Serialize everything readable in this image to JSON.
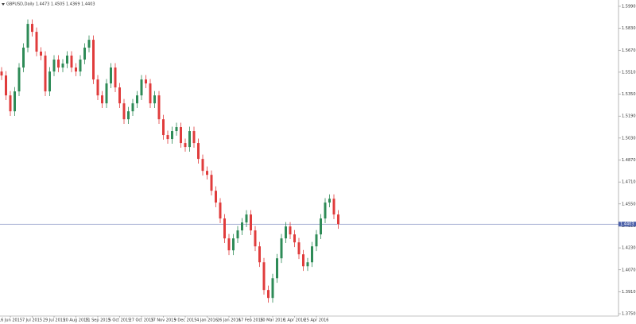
{
  "chart_data": {
    "type": "candlestick",
    "title": "GBPUSD,Daily  1.4473 1.4505 1.4369 1.4403",
    "up_color": "#2e8b57",
    "down_color": "#e03c3c",
    "current_price": 1.4403,
    "current_price_color": "#4a5fa8",
    "grid": false,
    "ylim": [
      1.3733,
      1.6036
    ],
    "yticks": [
      {
        "value": 1.599,
        "label": "1.5990"
      },
      {
        "value": 1.583,
        "label": "1.5830"
      },
      {
        "value": 1.567,
        "label": "1.5670"
      },
      {
        "value": 1.551,
        "label": "1.5510"
      },
      {
        "value": 1.535,
        "label": "1.5350"
      },
      {
        "value": 1.519,
        "label": "1.5190"
      },
      {
        "value": 1.503,
        "label": "1.5030"
      },
      {
        "value": 1.487,
        "label": "1.4870"
      },
      {
        "value": 1.471,
        "label": "1.4710"
      },
      {
        "value": 1.455,
        "label": "1.4550"
      },
      {
        "value": 1.439,
        "label": "1.4390"
      },
      {
        "value": 1.423,
        "label": "1.4230"
      },
      {
        "value": 1.407,
        "label": "1.4070"
      },
      {
        "value": 1.391,
        "label": "1.3910"
      },
      {
        "value": 1.375,
        "label": "1.3750"
      }
    ],
    "categories": [
      null,
      null,
      "16 Jun 2015",
      null,
      null,
      null,
      null,
      "7 Jul 2015",
      null,
      null,
      null,
      null,
      "29 Jul 2015",
      null,
      null,
      null,
      null,
      "20 Aug 2015",
      null,
      null,
      null,
      null,
      "11 Sep 2015",
      null,
      null,
      null,
      null,
      "5 Oct 2015",
      null,
      null,
      null,
      null,
      "27 Oct 2015",
      null,
      null,
      null,
      null,
      "17 Nov 2015",
      null,
      null,
      null,
      null,
      "9 Dec 2015",
      null,
      null,
      null,
      null,
      "4 Jan 2016",
      null,
      null,
      null,
      null,
      "26 Jan 2016",
      null,
      null,
      null,
      null,
      "17 Feb 2016",
      null,
      null,
      null,
      null,
      "10 Mar 2016",
      null,
      null,
      null,
      null,
      "1 Apr 2016",
      null,
      null,
      null,
      null,
      "25 Apr 2016",
      null,
      null,
      null,
      null,
      null
    ],
    "open": [
      1.5515,
      1.5486,
      1.5341,
      1.5225,
      1.537,
      1.5544,
      1.5689,
      1.5862,
      1.5804,
      1.566,
      1.5631,
      1.537,
      1.5515,
      1.5602,
      1.5544,
      1.5573,
      1.5631,
      1.5544,
      1.5515,
      1.5602,
      1.5689,
      1.5746,
      1.5457,
      1.5341,
      1.5283,
      1.5428,
      1.5544,
      1.5399,
      1.5283,
      1.5167,
      1.5225,
      1.5283,
      1.5341,
      1.5457,
      1.5428,
      1.5283,
      1.5341,
      1.5167,
      1.5052,
      1.5023,
      1.5081,
      1.511,
      1.4994,
      1.4965,
      1.5081,
      1.4994,
      1.4878,
      1.4791,
      1.4762,
      1.4646,
      1.456,
      1.4444,
      1.4299,
      1.4212,
      1.4299,
      1.4357,
      1.4415,
      1.4473,
      1.4357,
      1.4241,
      1.4125,
      1.3923,
      1.3865,
      1.4009,
      1.4154,
      1.4299,
      1.4386,
      1.4328,
      1.427,
      1.4183,
      1.4096,
      1.4125,
      1.4241,
      1.4328,
      1.4444,
      1.456,
      1.4588,
      1.4473
    ],
    "high": [
      1.5547,
      1.5518,
      1.5373,
      1.5402,
      1.5576,
      1.5721,
      1.5894,
      1.5894,
      1.5836,
      1.5692,
      1.5663,
      1.5547,
      1.5634,
      1.5634,
      1.5605,
      1.5663,
      1.5663,
      1.5576,
      1.5634,
      1.5721,
      1.5778,
      1.5778,
      1.5489,
      1.5373,
      1.546,
      1.5576,
      1.5576,
      1.5431,
      1.5315,
      1.5257,
      1.5315,
      1.5373,
      1.5489,
      1.5489,
      1.546,
      1.5373,
      1.5373,
      1.5199,
      1.5084,
      1.5113,
      1.5142,
      1.5142,
      1.5026,
      1.5113,
      1.5113,
      1.5026,
      1.491,
      1.4823,
      1.4794,
      1.4678,
      1.4592,
      1.4476,
      1.4331,
      1.4331,
      1.4389,
      1.4447,
      1.4505,
      1.4505,
      1.4389,
      1.4273,
      1.4157,
      1.3955,
      1.4041,
      1.4186,
      1.4331,
      1.4418,
      1.4418,
      1.436,
      1.4302,
      1.4215,
      1.4157,
      1.4273,
      1.436,
      1.4476,
      1.4592,
      1.462,
      1.462,
      1.4505
    ],
    "low": [
      1.5452,
      1.5307,
      1.5191,
      1.5191,
      1.5336,
      1.551,
      1.5655,
      1.577,
      1.5626,
      1.5597,
      1.5336,
      1.5336,
      1.5481,
      1.551,
      1.551,
      1.5539,
      1.551,
      1.5481,
      1.5481,
      1.5568,
      1.5655,
      1.5423,
      1.5307,
      1.5249,
      1.5249,
      1.5394,
      1.5365,
      1.5249,
      1.5133,
      1.5133,
      1.5191,
      1.5249,
      1.5307,
      1.5394,
      1.5249,
      1.5249,
      1.5133,
      1.5018,
      1.4989,
      1.4989,
      1.5047,
      1.496,
      1.4931,
      1.4931,
      1.496,
      1.4844,
      1.4757,
      1.4728,
      1.4612,
      1.4526,
      1.441,
      1.4265,
      1.4178,
      1.4178,
      1.4265,
      1.4323,
      1.4381,
      1.4323,
      1.4207,
      1.4091,
      1.3889,
      1.3831,
      1.3831,
      1.3975,
      1.412,
      1.4265,
      1.4294,
      1.4236,
      1.4149,
      1.4062,
      1.4062,
      1.4091,
      1.4207,
      1.4294,
      1.441,
      1.4526,
      1.4439,
      1.4369
    ],
    "close": [
      1.5486,
      1.5341,
      1.5225,
      1.537,
      1.5544,
      1.5689,
      1.5862,
      1.5804,
      1.566,
      1.5631,
      1.537,
      1.5515,
      1.5602,
      1.5544,
      1.5573,
      1.5631,
      1.5544,
      1.5515,
      1.5602,
      1.5689,
      1.5746,
      1.5457,
      1.5341,
      1.5283,
      1.5428,
      1.5544,
      1.5399,
      1.5283,
      1.5167,
      1.5225,
      1.5283,
      1.5341,
      1.5457,
      1.5428,
      1.5283,
      1.5341,
      1.5167,
      1.5052,
      1.5023,
      1.5081,
      1.511,
      1.4994,
      1.4965,
      1.5081,
      1.4994,
      1.4878,
      1.4791,
      1.4762,
      1.4646,
      1.456,
      1.4444,
      1.4299,
      1.4212,
      1.4299,
      1.4357,
      1.4415,
      1.4473,
      1.4357,
      1.4241,
      1.4125,
      1.3923,
      1.3865,
      1.4009,
      1.4154,
      1.4299,
      1.4386,
      1.4328,
      1.427,
      1.4183,
      1.4096,
      1.4125,
      1.4241,
      1.4328,
      1.4444,
      1.456,
      1.4588,
      1.4473,
      1.4403
    ]
  }
}
